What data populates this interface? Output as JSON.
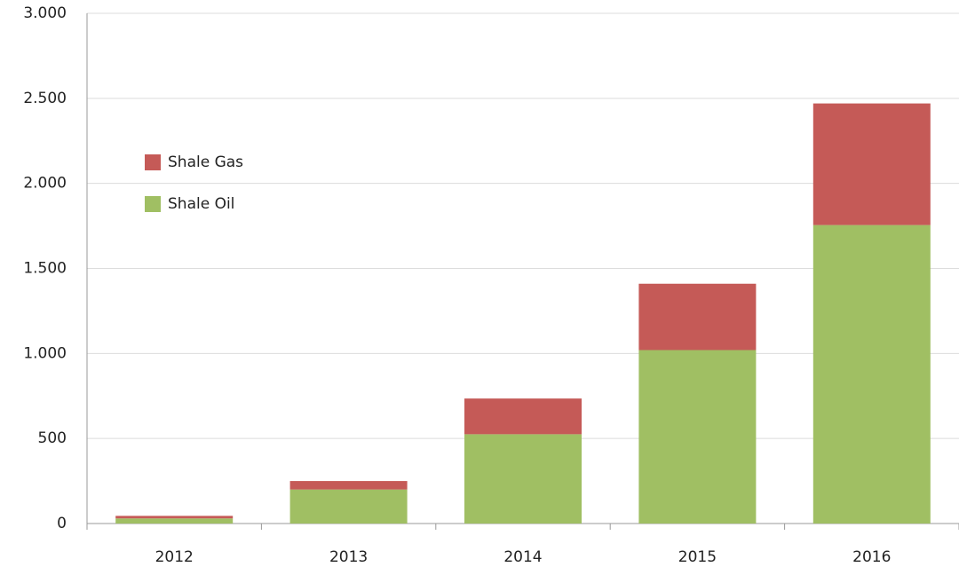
{
  "chart_data": {
    "type": "stacked_bar",
    "categories": [
      "2012",
      "2013",
      "2014",
      "2015",
      "2016"
    ],
    "series": [
      {
        "name": "Shale Oil",
        "color": "#a0bf63",
        "values": [
          30,
          200,
          525,
          1020,
          1755
        ]
      },
      {
        "name": "Shale Gas",
        "color": "#c55a57",
        "values": [
          15,
          50,
          210,
          390,
          715
        ]
      }
    ],
    "ylim": [
      0,
      3000
    ],
    "yticks": [
      0,
      500,
      {
        "value": 1000,
        "label": "1.000"
      },
      {
        "value": 1500,
        "label": "1.500"
      },
      {
        "value": 2000,
        "label": "2.000"
      },
      {
        "value": 2500,
        "label": "2.500"
      },
      {
        "value": 3000,
        "label": "3.000"
      }
    ],
    "grid": true,
    "legend": "upper left"
  }
}
